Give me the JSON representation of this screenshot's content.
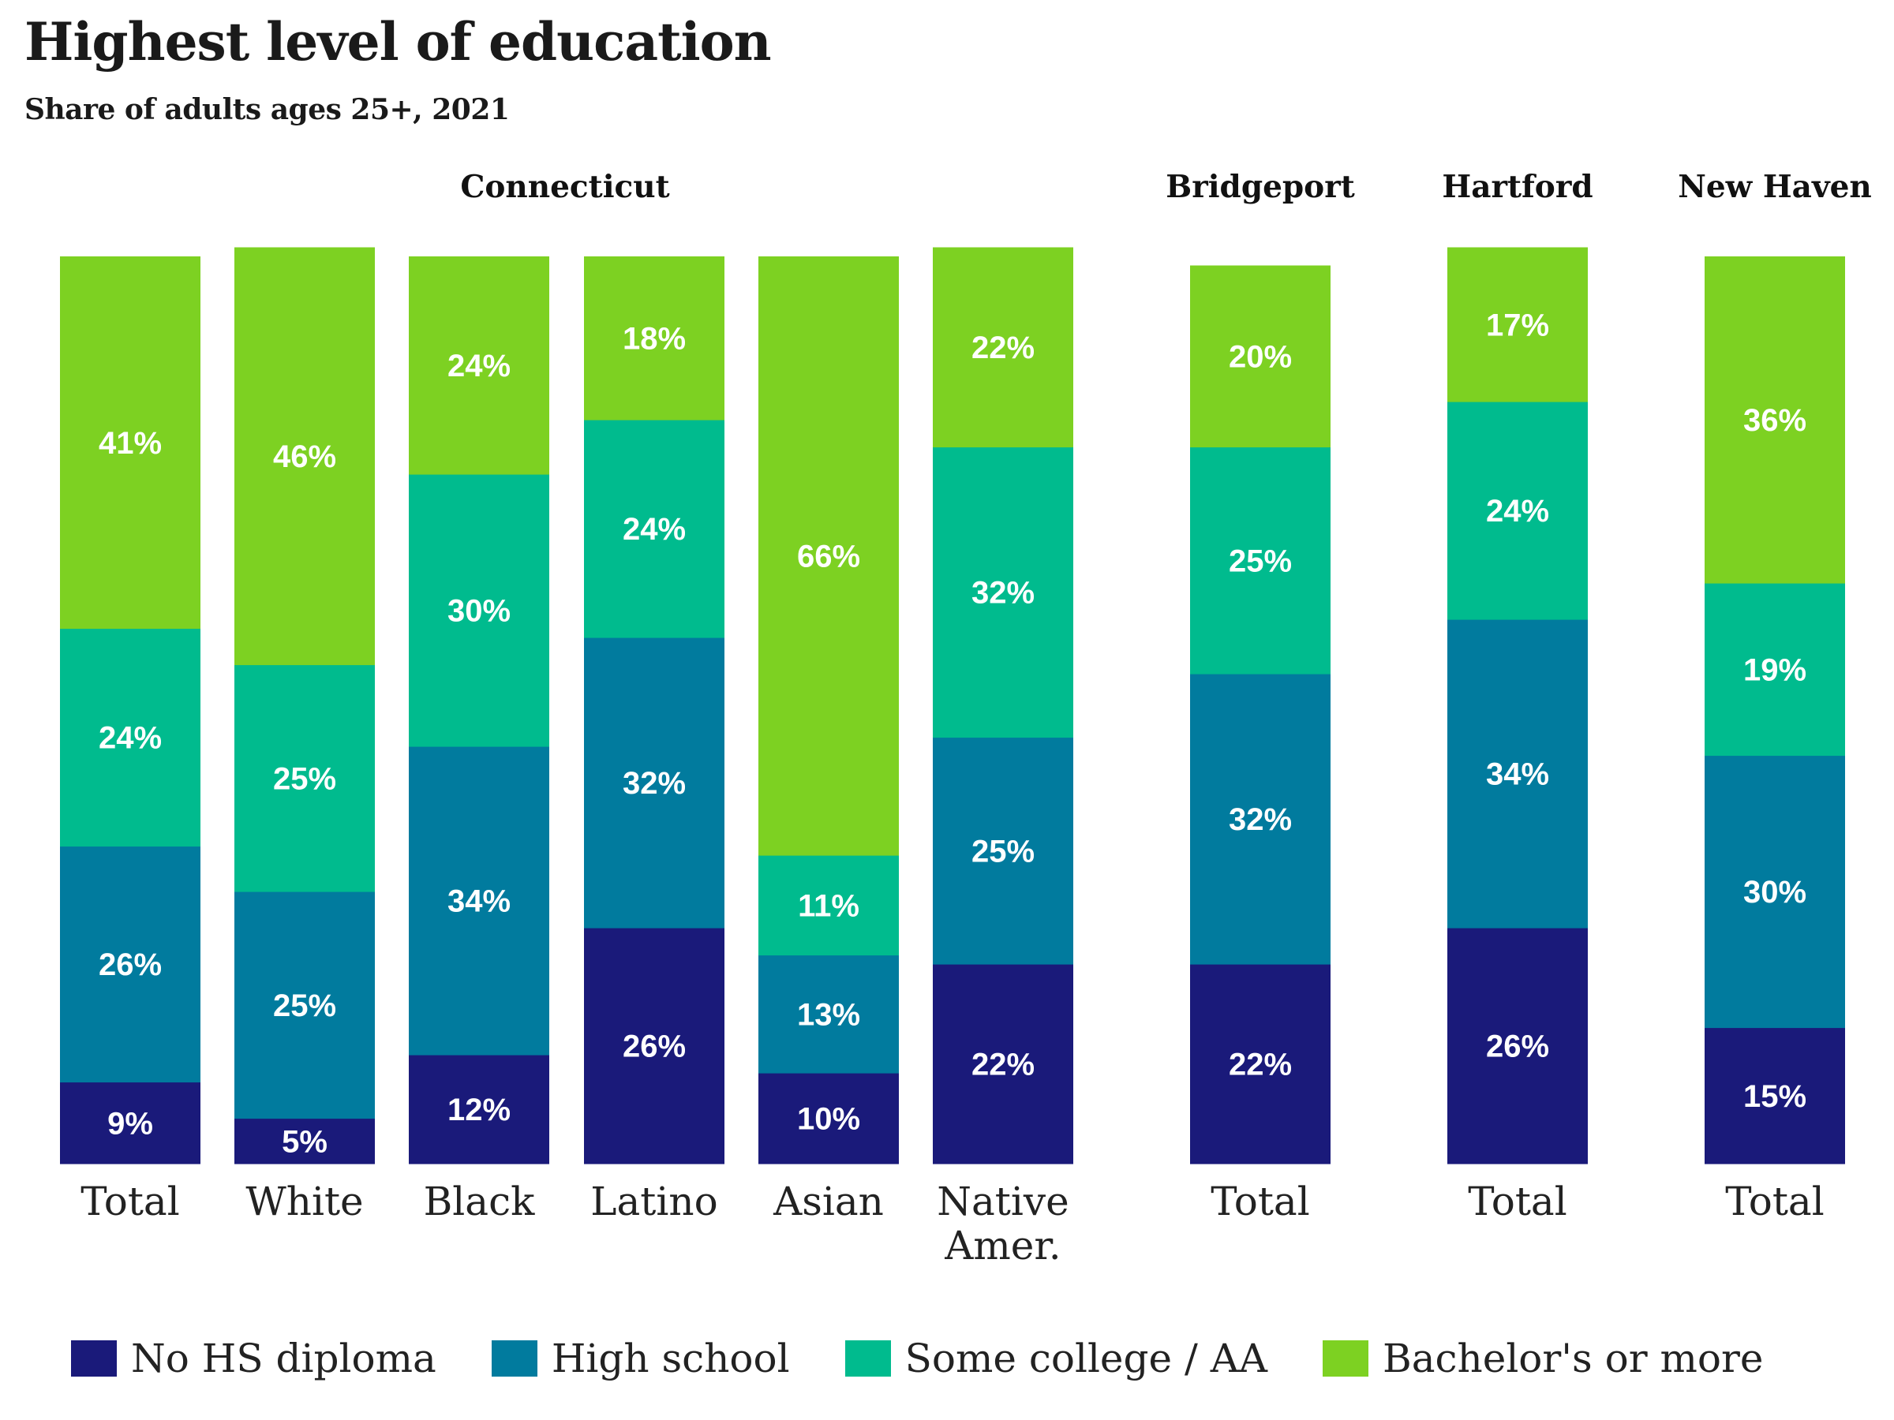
{
  "chart_data": {
    "type": "bar",
    "stacked": true,
    "title": "Highest level of education",
    "subtitle": "Share of adults ages 25+, 2021",
    "ylim": [
      0,
      100
    ],
    "grid": false,
    "legend_position": "bottom",
    "groups": [
      {
        "name": "Connecticut",
        "categories": [
          "Total",
          "White",
          "Black",
          "Latino",
          "Asian",
          "Native Amer."
        ]
      },
      {
        "name": "Bridgeport",
        "categories": [
          "Total"
        ]
      },
      {
        "name": "Hartford",
        "categories": [
          "Total"
        ]
      },
      {
        "name": "New Haven",
        "categories": [
          "Total"
        ]
      }
    ],
    "series": [
      {
        "name": "No HS diploma",
        "color": "#1a1a7a",
        "values": [
          9,
          5,
          12,
          26,
          10,
          22,
          22,
          26,
          15
        ]
      },
      {
        "name": "High school",
        "color": "#017b9e",
        "values": [
          26,
          25,
          34,
          32,
          13,
          25,
          32,
          34,
          30
        ]
      },
      {
        "name": "Some college / AA",
        "color": "#00bb8e",
        "values": [
          24,
          25,
          30,
          24,
          11,
          32,
          25,
          24,
          19
        ]
      },
      {
        "name": "Bachelor's or more",
        "color": "#7dd122",
        "values": [
          41,
          46,
          24,
          18,
          66,
          22,
          20,
          17,
          36
        ]
      }
    ]
  }
}
